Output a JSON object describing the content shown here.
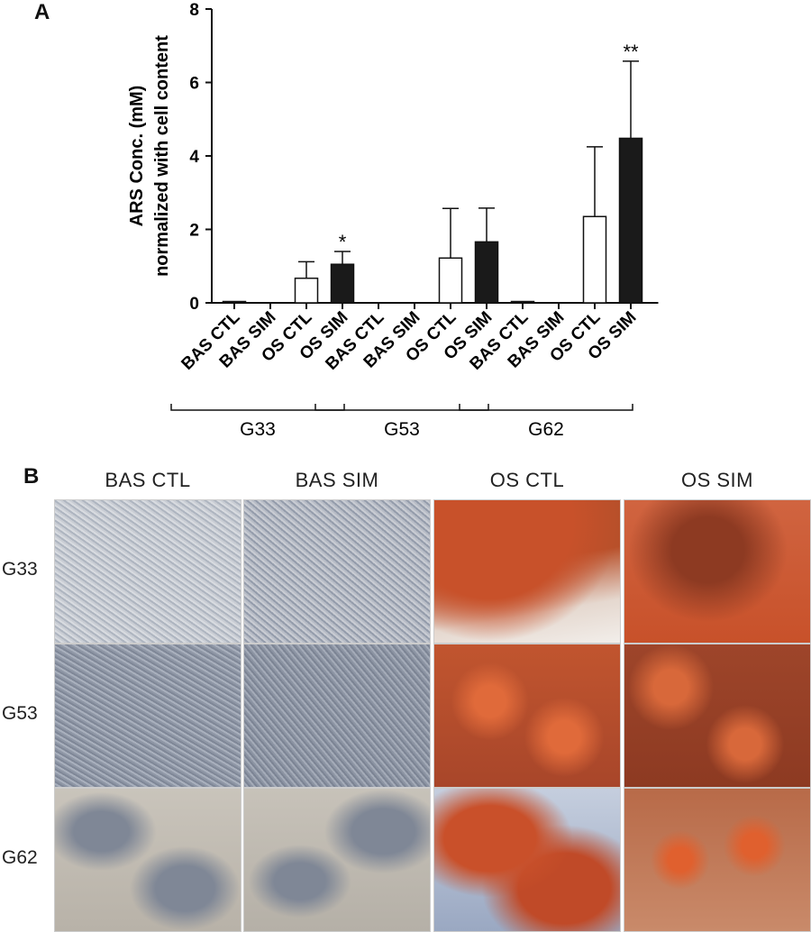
{
  "panels": {
    "a": "A",
    "b": "B"
  },
  "chart_data": {
    "type": "bar",
    "categories": [
      "BAS CTL",
      "BAS SIM",
      "OS CTL",
      "OS SIM",
      "BAS CTL",
      "BAS SIM",
      "OS CTL",
      "OS SIM",
      "BAS CTL",
      "BAS SIM",
      "OS CTL",
      "OS SIM"
    ],
    "values": [
      0.02,
      0,
      0.67,
      1.05,
      0,
      0,
      1.22,
      1.66,
      0.02,
      0,
      2.35,
      4.48
    ],
    "errors": [
      0,
      0,
      0.45,
      0.35,
      0,
      0,
      1.35,
      0.92,
      0,
      0,
      1.9,
      2.1
    ],
    "fill": [
      "white",
      "white",
      "white",
      "black",
      "white",
      "white",
      "white",
      "black",
      "white",
      "white",
      "white",
      "black"
    ],
    "significance": [
      "",
      "",
      "",
      "*",
      "",
      "",
      "",
      "",
      "",
      "",
      "",
      "**"
    ],
    "groups": [
      {
        "name": "G33",
        "from": 0,
        "to": 3
      },
      {
        "name": "G53",
        "from": 4,
        "to": 7
      },
      {
        "name": "G62",
        "from": 8,
        "to": 11
      }
    ],
    "ylabel_line1": "ARS Conc. (mM)",
    "ylabel_line2": "normalized with cell content",
    "ylim": [
      0,
      8
    ],
    "yticks": [
      "0",
      "2",
      "4",
      "6",
      "8"
    ],
    "grid": false
  },
  "micrograph": {
    "columns": [
      "BAS CTL",
      "BAS SIM",
      "OS CTL",
      "OS SIM"
    ],
    "rows": [
      "G33",
      "G53",
      "G62"
    ],
    "stain_colors": {
      "unstained": "#9aa2ad",
      "stained": "#c8512a",
      "dark_stained": "#8d3a22"
    }
  }
}
